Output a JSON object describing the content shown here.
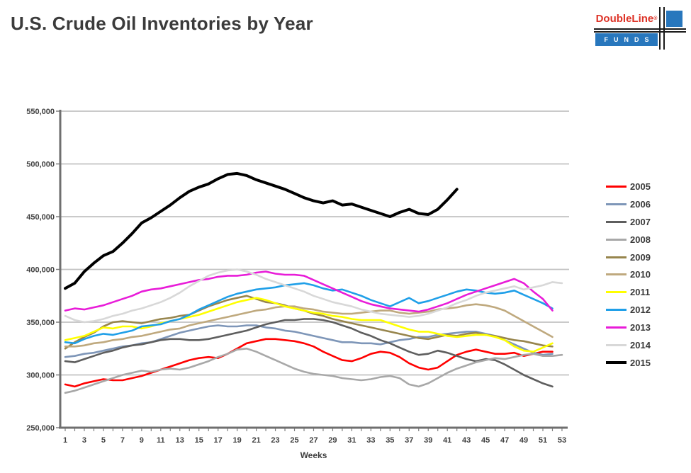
{
  "header": {
    "title": "U.S. Crude Oil Inventories by Year",
    "logo": {
      "brand": "DoubleLine",
      "reg": "®",
      "sub": "FUNDS",
      "brand_color": "#dd3327",
      "bar_color": "#2877bd"
    }
  },
  "chart_data": {
    "type": "line",
    "title": "U.S. Crude Oil Inventories by Year",
    "xlabel": "Weeks",
    "ylabel": "",
    "x_tick_labels": [
      1,
      3,
      5,
      7,
      9,
      11,
      13,
      15,
      17,
      19,
      21,
      23,
      25,
      27,
      29,
      31,
      33,
      35,
      37,
      39,
      41,
      43,
      45,
      47,
      49,
      51,
      53
    ],
    "x_range": [
      1,
      53
    ],
    "ylim": [
      250000,
      550000
    ],
    "y_tick_step": 50000,
    "y_tick_labels": [
      "250,000",
      "300,000",
      "350,000",
      "400,000",
      "450,000",
      "500,000",
      "550,000"
    ],
    "values_scale": 1000,
    "values_note": "weekly inventory level in thousand barrels; multiply by values_scale for axis units; x = week of year starting at week 1",
    "grid": "horizontal",
    "legend_position": "right",
    "series": [
      {
        "name": "2005",
        "color": "#ff0000",
        "values": [
          291,
          289,
          292,
          294,
          296,
          295,
          295,
          297,
          299,
          302,
          305,
          308,
          311,
          314,
          316,
          317,
          316,
          320,
          325,
          330,
          332,
          334,
          334,
          333,
          332,
          330,
          327,
          322,
          318,
          314,
          313,
          316,
          320,
          322,
          321,
          317,
          311,
          307,
          305,
          307,
          313,
          319,
          322,
          324,
          322,
          320,
          320,
          321,
          318,
          320,
          322,
          322
        ]
      },
      {
        "name": "2006",
        "color": "#7e96b8",
        "values": [
          317,
          318,
          320,
          321,
          323,
          325,
          327,
          328,
          330,
          331,
          334,
          337,
          340,
          342,
          344,
          346,
          347,
          346,
          346,
          347,
          347,
          345,
          344,
          342,
          341,
          339,
          337,
          335,
          333,
          331,
          331,
          330,
          330,
          329,
          331,
          333,
          334,
          336,
          336,
          338,
          339,
          340,
          341,
          341,
          339,
          337,
          333,
          329,
          325,
          321,
          319,
          320
        ]
      },
      {
        "name": "2007",
        "color": "#5e5e5e",
        "values": [
          313,
          312,
          315,
          318,
          321,
          323,
          326,
          328,
          329,
          331,
          333,
          334,
          334,
          333,
          333,
          334,
          336,
          338,
          340,
          342,
          345,
          348,
          350,
          352,
          352,
          353,
          353,
          352,
          350,
          347,
          344,
          340,
          337,
          333,
          330,
          326,
          322,
          319,
          320,
          323,
          321,
          318,
          315,
          313,
          315,
          314,
          310,
          305,
          300,
          296,
          292,
          289
        ]
      },
      {
        "name": "2008",
        "color": "#a8a8a8",
        "values": [
          283,
          285,
          288,
          291,
          294,
          297,
          300,
          302,
          304,
          303,
          305,
          306,
          305,
          307,
          310,
          313,
          317,
          320,
          324,
          325,
          322,
          318,
          314,
          310,
          306,
          303,
          301,
          300,
          299,
          297,
          296,
          295,
          296,
          298,
          299,
          297,
          291,
          289,
          292,
          297,
          302,
          306,
          309,
          312,
          314,
          316,
          315,
          317,
          319,
          320,
          318,
          318,
          319
        ]
      },
      {
        "name": "2009",
        "color": "#97854d",
        "values": [
          325,
          331,
          336,
          340,
          346,
          350,
          351,
          350,
          349,
          351,
          353,
          354,
          356,
          357,
          361,
          365,
          368,
          371,
          373,
          375,
          372,
          369,
          368,
          366,
          363,
          361,
          358,
          356,
          353,
          351,
          349,
          347,
          345,
          343,
          341,
          339,
          337,
          335,
          334,
          336,
          338,
          337,
          339,
          340,
          338,
          337,
          335,
          333,
          332,
          330,
          328,
          327
        ]
      },
      {
        "name": "2010",
        "color": "#bfa97e",
        "values": [
          327,
          327,
          328,
          330,
          331,
          333,
          334,
          336,
          337,
          339,
          341,
          343,
          344,
          347,
          349,
          351,
          353,
          355,
          357,
          359,
          361,
          362,
          364,
          365,
          365,
          363,
          362,
          360,
          359,
          358,
          358,
          359,
          360,
          361,
          361,
          359,
          358,
          359,
          360,
          362,
          363,
          364,
          366,
          367,
          366,
          364,
          361,
          356,
          351,
          346,
          341,
          336
        ]
      },
      {
        "name": "2011",
        "color": "#ffff00",
        "values": [
          333,
          335,
          337,
          341,
          345,
          344,
          346,
          346,
          344,
          346,
          349,
          351,
          353,
          355,
          357,
          360,
          363,
          366,
          369,
          371,
          373,
          371,
          368,
          365,
          363,
          361,
          359,
          358,
          356,
          355,
          353,
          352,
          352,
          352,
          349,
          346,
          343,
          341,
          341,
          339,
          337,
          336,
          337,
          338,
          338,
          336,
          333,
          327,
          323,
          322,
          326,
          330
        ]
      },
      {
        "name": "2012",
        "color": "#1f9fe8",
        "values": [
          331,
          330,
          334,
          337,
          339,
          338,
          340,
          342,
          346,
          347,
          348,
          351,
          353,
          357,
          362,
          366,
          370,
          374,
          377,
          379,
          381,
          382,
          383,
          385,
          386,
          387,
          385,
          382,
          380,
          381,
          378,
          375,
          371,
          368,
          365,
          369,
          373,
          368,
          370,
          373,
          376,
          379,
          381,
          380,
          378,
          377,
          378,
          380,
          376,
          372,
          368,
          363
        ]
      },
      {
        "name": "2013",
        "color": "#e81cd8",
        "values": [
          361,
          363,
          362,
          364,
          366,
          369,
          372,
          375,
          379,
          381,
          382,
          384,
          386,
          388,
          390,
          391,
          393,
          394,
          394,
          395,
          397,
          398,
          396,
          395,
          395,
          394,
          390,
          386,
          382,
          378,
          374,
          370,
          367,
          365,
          363,
          362,
          361,
          360,
          362,
          365,
          368,
          372,
          376,
          379,
          382,
          385,
          388,
          391,
          387,
          379,
          372,
          361
        ]
      },
      {
        "name": "2014",
        "color": "#d8d8d8",
        "values": [
          356,
          352,
          350,
          351,
          353,
          356,
          358,
          361,
          363,
          366,
          369,
          373,
          378,
          384,
          389,
          394,
          397,
          399,
          400,
          398,
          395,
          391,
          388,
          385,
          382,
          379,
          375,
          372,
          369,
          367,
          365,
          362,
          360,
          358,
          357,
          356,
          355,
          356,
          358,
          361,
          364,
          368,
          371,
          375,
          378,
          380,
          382,
          384,
          381,
          383,
          385,
          388,
          387
        ]
      },
      {
        "name": "2015",
        "color": "#000000",
        "emphasized": true,
        "values": [
          382,
          387,
          398,
          406,
          413,
          417,
          425,
          434,
          444,
          449,
          455,
          461,
          468,
          474,
          478,
          481,
          486,
          490,
          491,
          489,
          485,
          482,
          479,
          476,
          472,
          468,
          465,
          463,
          465,
          461,
          462,
          459,
          456,
          453,
          450,
          454,
          457,
          453,
          452,
          457,
          466,
          476
        ]
      }
    ]
  }
}
